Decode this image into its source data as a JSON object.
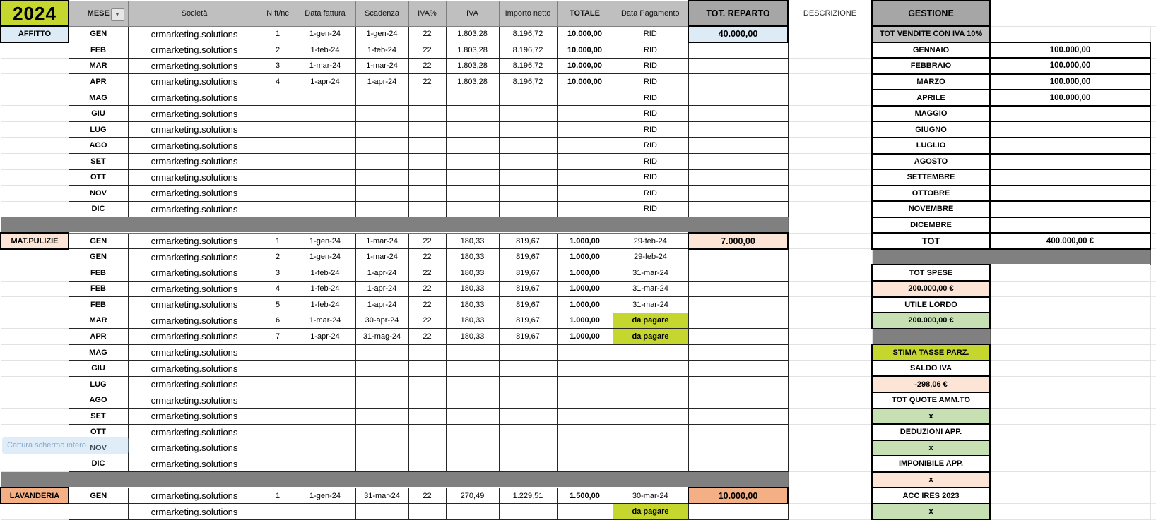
{
  "header": {
    "year": "2024",
    "columns": {
      "mese": "MESE",
      "societa": "Società",
      "n_ft": "N ft/nc",
      "data_fattura": "Data fattura",
      "scadenza": "Scadenza",
      "iva_pct": "IVA%",
      "iva": "IVA",
      "importo_netto": "Importo netto",
      "totale": "TOTALE",
      "data_pagamento": "Data Pagamento",
      "tot_reparto": "TOT. REPARTO",
      "descrizione": "DESCRIZIONE",
      "gestione": "GESTIONE"
    }
  },
  "colors": {
    "lime": "#C5D72E",
    "header_gray": "#BFBFBF",
    "header_dark_gray": "#A6A6A6",
    "band_gray": "#808080",
    "light_blue": "#DDEBF7",
    "peach": "#FCE4D6",
    "orange": "#F4B084",
    "green": "#C6E0B4"
  },
  "invoice_rows": [
    {
      "c": "AFFITTO",
      "cv": "blue",
      "m": "GEN",
      "s": "crmarketing.solutions",
      "n": "1",
      "f": "1-gen-24",
      "sc": "1-gen-24",
      "pv": "22",
      "i": "1.803,28",
      "im": "8.196,72",
      "t": "10.000,00",
      "dp": "RID",
      "r": "40.000,00",
      "rv": "blue"
    },
    {
      "c": "",
      "m": "FEB",
      "s": "crmarketing.solutions",
      "n": "2",
      "f": "1-feb-24",
      "sc": "1-feb-24",
      "pv": "22",
      "i": "1.803,28",
      "im": "8.196,72",
      "t": "10.000,00",
      "dp": "RID",
      "r": ""
    },
    {
      "c": "",
      "m": "MAR",
      "s": "crmarketing.solutions",
      "n": "3",
      "f": "1-mar-24",
      "sc": "1-mar-24",
      "pv": "22",
      "i": "1.803,28",
      "im": "8.196,72",
      "t": "10.000,00",
      "dp": "RID",
      "r": ""
    },
    {
      "c": "",
      "m": "APR",
      "s": "crmarketing.solutions",
      "n": "4",
      "f": "1-apr-24",
      "sc": "1-apr-24",
      "pv": "22",
      "i": "1.803,28",
      "im": "8.196,72",
      "t": "10.000,00",
      "dp": "RID",
      "r": ""
    },
    {
      "c": "",
      "m": "MAG",
      "s": "crmarketing.solutions",
      "n": "",
      "f": "",
      "sc": "",
      "pv": "",
      "i": "",
      "im": "",
      "t": "",
      "dp": "RID",
      "r": ""
    },
    {
      "c": "",
      "m": "GIU",
      "s": "crmarketing.solutions",
      "n": "",
      "f": "",
      "sc": "",
      "pv": "",
      "i": "",
      "im": "",
      "t": "",
      "dp": "RID",
      "r": ""
    },
    {
      "c": "",
      "m": "LUG",
      "s": "crmarketing.solutions",
      "n": "",
      "f": "",
      "sc": "",
      "pv": "",
      "i": "",
      "im": "",
      "t": "",
      "dp": "RID",
      "r": ""
    },
    {
      "c": "",
      "m": "AGO",
      "s": "crmarketing.solutions",
      "n": "",
      "f": "",
      "sc": "",
      "pv": "",
      "i": "",
      "im": "",
      "t": "",
      "dp": "RID",
      "r": ""
    },
    {
      "c": "",
      "m": "SET",
      "s": "crmarketing.solutions",
      "n": "",
      "f": "",
      "sc": "",
      "pv": "",
      "i": "",
      "im": "",
      "t": "",
      "dp": "RID",
      "r": ""
    },
    {
      "c": "",
      "m": "OTT",
      "s": "crmarketing.solutions",
      "n": "",
      "f": "",
      "sc": "",
      "pv": "",
      "i": "",
      "im": "",
      "t": "",
      "dp": "RID",
      "r": ""
    },
    {
      "c": "",
      "m": "NOV",
      "s": "crmarketing.solutions",
      "n": "",
      "f": "",
      "sc": "",
      "pv": "",
      "i": "",
      "im": "",
      "t": "",
      "dp": "RID",
      "r": ""
    },
    {
      "c": "",
      "m": "DIC",
      "s": "crmarketing.solutions",
      "n": "",
      "f": "",
      "sc": "",
      "pv": "",
      "i": "",
      "im": "",
      "t": "",
      "dp": "RID",
      "r": ""
    },
    {
      "sep": true
    },
    {
      "c": "MAT.PULIZIE",
      "cv": "peach",
      "m": "GEN",
      "s": "crmarketing.solutions",
      "n": "1",
      "f": "1-gen-24",
      "sc": "1-mar-24",
      "pv": "22",
      "i": "180,33",
      "im": "819,67",
      "t": "1.000,00",
      "dp": "29-feb-24",
      "r": "7.000,00",
      "rv": "peach"
    },
    {
      "c": "",
      "m": "GEN",
      "s": "crmarketing.solutions",
      "n": "2",
      "f": "1-gen-24",
      "sc": "1-mar-24",
      "pv": "22",
      "i": "180,33",
      "im": "819,67",
      "t": "1.000,00",
      "dp": "29-feb-24",
      "r": ""
    },
    {
      "c": "",
      "m": "FEB",
      "s": "crmarketing.solutions",
      "n": "3",
      "f": "1-feb-24",
      "sc": "1-apr-24",
      "pv": "22",
      "i": "180,33",
      "im": "819,67",
      "t": "1.000,00",
      "dp": "31-mar-24",
      "r": ""
    },
    {
      "c": "",
      "m": "FEB",
      "s": "crmarketing.solutions",
      "n": "4",
      "f": "1-feb-24",
      "sc": "1-apr-24",
      "pv": "22",
      "i": "180,33",
      "im": "819,67",
      "t": "1.000,00",
      "dp": "31-mar-24",
      "r": ""
    },
    {
      "c": "",
      "m": "FEB",
      "s": "crmarketing.solutions",
      "n": "5",
      "f": "1-feb-24",
      "sc": "1-apr-24",
      "pv": "22",
      "i": "180,33",
      "im": "819,67",
      "t": "1.000,00",
      "dp": "31-mar-24",
      "r": ""
    },
    {
      "c": "",
      "m": "MAR",
      "s": "crmarketing.solutions",
      "n": "6",
      "f": "1-mar-24",
      "sc": "30-apr-24",
      "pv": "22",
      "i": "180,33",
      "im": "819,67",
      "t": "1.000,00",
      "dp": "da pagare",
      "dpl": true,
      "r": ""
    },
    {
      "c": "",
      "m": "APR",
      "s": "crmarketing.solutions",
      "n": "7",
      "f": "1-apr-24",
      "sc": "31-mag-24",
      "pv": "22",
      "i": "180,33",
      "im": "819,67",
      "t": "1.000,00",
      "dp": "da pagare",
      "dpl": true,
      "r": ""
    },
    {
      "c": "",
      "m": "MAG",
      "s": "crmarketing.solutions",
      "n": "",
      "f": "",
      "sc": "",
      "pv": "",
      "i": "",
      "im": "",
      "t": "",
      "dp": "",
      "r": ""
    },
    {
      "c": "",
      "m": "GIU",
      "s": "crmarketing.solutions",
      "n": "",
      "f": "",
      "sc": "",
      "pv": "",
      "i": "",
      "im": "",
      "t": "",
      "dp": "",
      "r": ""
    },
    {
      "c": "",
      "m": "LUG",
      "s": "crmarketing.solutions",
      "n": "",
      "f": "",
      "sc": "",
      "pv": "",
      "i": "",
      "im": "",
      "t": "",
      "dp": "",
      "r": ""
    },
    {
      "c": "",
      "m": "AGO",
      "s": "crmarketing.solutions",
      "n": "",
      "f": "",
      "sc": "",
      "pv": "",
      "i": "",
      "im": "",
      "t": "",
      "dp": "",
      "r": ""
    },
    {
      "c": "",
      "m": "SET",
      "s": "crmarketing.solutions",
      "n": "",
      "f": "",
      "sc": "",
      "pv": "",
      "i": "",
      "im": "",
      "t": "",
      "dp": "",
      "r": ""
    },
    {
      "c": "",
      "m": "OTT",
      "s": "crmarketing.solutions",
      "n": "",
      "f": "",
      "sc": "",
      "pv": "",
      "i": "",
      "im": "",
      "t": "",
      "dp": "",
      "r": ""
    },
    {
      "c": "",
      "m": "NOV",
      "s": "crmarketing.solutions",
      "n": "",
      "f": "",
      "sc": "",
      "pv": "",
      "i": "",
      "im": "",
      "t": "",
      "dp": "",
      "r": ""
    },
    {
      "c": "",
      "m": "DIC",
      "s": "crmarketing.solutions",
      "n": "",
      "f": "",
      "sc": "",
      "pv": "",
      "i": "",
      "im": "",
      "t": "",
      "dp": "",
      "r": ""
    },
    {
      "sep": true
    },
    {
      "c": "LAVANDERIA",
      "cv": "orange",
      "m": "GEN",
      "s": "crmarketing.solutions",
      "n": "1",
      "f": "1-gen-24",
      "sc": "31-mar-24",
      "pv": "22",
      "i": "270,49",
      "im": "1.229,51",
      "t": "1.500,00",
      "dp": "30-mar-24",
      "r": "10.000,00",
      "rv": "orange"
    },
    {
      "c": "",
      "m": "",
      "s": "crmarketing.solutions",
      "n": "",
      "f": "",
      "sc": "",
      "pv": "",
      "i": "",
      "im": "",
      "t": "",
      "dp": "da pagare",
      "dpl": true,
      "r": ""
    }
  ],
  "gestione_rows": [
    {
      "l": "TOT VENDITE CON IVA 10%",
      "lv": "gray",
      "v": ""
    },
    {
      "l": "GENNAIO",
      "v": "100.000,00",
      "vbox": true
    },
    {
      "l": "FEBBRAIO",
      "v": "100.000,00",
      "vbox": true
    },
    {
      "l": "MARZO",
      "v": "100.000,00",
      "vbox": true
    },
    {
      "l": "APRILE",
      "v": "100.000,00",
      "vbox": true
    },
    {
      "l": "MAGGIO",
      "v": "",
      "vbox": true
    },
    {
      "l": "GIUGNO",
      "v": "",
      "vbox": true
    },
    {
      "l": "LUGLIO",
      "v": "",
      "vbox": true
    },
    {
      "l": "AGOSTO",
      "v": "",
      "vbox": true
    },
    {
      "l": "SETTEMBRE",
      "v": "",
      "vbox": true
    },
    {
      "l": "OTTOBRE",
      "v": "",
      "vbox": true
    },
    {
      "l": "NOVEMBRE",
      "v": "",
      "vbox": true
    },
    {
      "l": "DICEMBRE",
      "v": "",
      "vbox": true
    },
    {
      "l": "TOT",
      "big": true,
      "v": "400.000,00 €",
      "vbox": true,
      "vbg": "green"
    },
    {
      "band": "full"
    },
    {
      "l": "TOT SPESE",
      "v": ""
    },
    {
      "l": "200.000,00 €",
      "lv": "peach",
      "v": ""
    },
    {
      "l": "UTILE LORDO",
      "v": ""
    },
    {
      "l": "200.000,00 €",
      "lv": "green",
      "v": ""
    },
    {
      "band": "label"
    },
    {
      "l": "STIMA TASSE PARZ.",
      "lv": "lime",
      "v": ""
    },
    {
      "l": "SALDO IVA",
      "v": ""
    },
    {
      "l": "-298,06 €",
      "lv": "peach",
      "v": ""
    },
    {
      "l": "TOT QUOTE AMM.TO",
      "v": ""
    },
    {
      "l": "x",
      "lv": "green",
      "v": ""
    },
    {
      "l": "DEDUZIONI APP.",
      "v": ""
    },
    {
      "l": "x",
      "lv": "green",
      "v": ""
    },
    {
      "l": "IMPONIBILE APP.",
      "v": ""
    },
    {
      "l": "x",
      "lv": "peach",
      "v": ""
    },
    {
      "l": "ACC IRES 2023",
      "v": ""
    },
    {
      "l": "x",
      "lv": "green",
      "v": ""
    }
  ],
  "overlay": {
    "text": "Cattura schermo intero"
  }
}
